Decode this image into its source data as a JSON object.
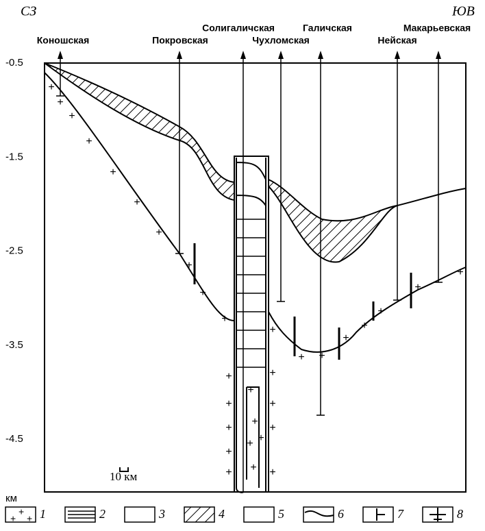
{
  "header": {
    "left": "СЗ",
    "right": "ЮВ"
  },
  "wells": [
    {
      "name": "Коношская"
    },
    {
      "name": "Покровская"
    },
    {
      "name": "Солигаличская"
    },
    {
      "name": "Чухломская"
    },
    {
      "name": "Галичская"
    },
    {
      "name": "Нейская"
    },
    {
      "name": "Макарьевская"
    }
  ],
  "axis": {
    "unit": "км",
    "ticks": [
      "-0.5",
      "-1.5",
      "-2.5",
      "-3.5",
      "-4.5"
    ]
  },
  "scale": {
    "label": "10 км"
  },
  "legend": [
    "1",
    "2",
    "3",
    "4",
    "5",
    "6",
    "7",
    "8"
  ]
}
